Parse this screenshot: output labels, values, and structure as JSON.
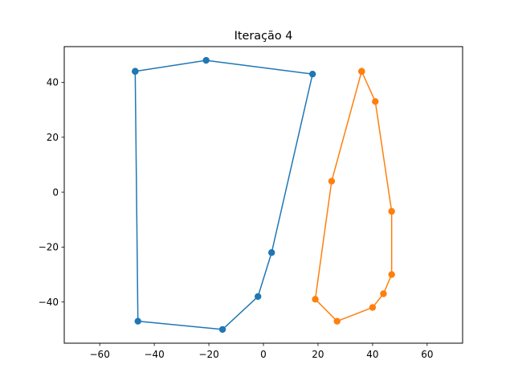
{
  "chart_data": {
    "type": "line",
    "title": "Iteração 4",
    "xlabel": "",
    "ylabel": "",
    "xlim": [
      -73,
      73
    ],
    "ylim": [
      -55,
      53
    ],
    "x_ticks": [
      -60,
      -40,
      -20,
      0,
      20,
      40,
      60
    ],
    "y_ticks": [
      -40,
      -20,
      0,
      20,
      40
    ],
    "x_tick_labels": [
      "−60",
      "−40",
      "−20",
      "0",
      "20",
      "40",
      "60"
    ],
    "y_tick_labels": [
      "−40",
      "−20",
      "0",
      "20",
      "40"
    ],
    "grid": false,
    "legend": "none",
    "series": [
      {
        "color": "#1f77b4",
        "marker": "circle",
        "points": [
          [
            -47,
            44
          ],
          [
            -21,
            48
          ],
          [
            18,
            43
          ],
          [
            3,
            -22
          ],
          [
            -2,
            -38
          ],
          [
            -15,
            -50
          ],
          [
            -46,
            -47
          ],
          [
            -47,
            44
          ]
        ]
      },
      {
        "color": "#ff7f0e",
        "marker": "circle",
        "points": [
          [
            36,
            44
          ],
          [
            41,
            33
          ],
          [
            47,
            -7
          ],
          [
            47,
            -30
          ],
          [
            44,
            -37
          ],
          [
            40,
            -42
          ],
          [
            27,
            -47
          ],
          [
            19,
            -39
          ],
          [
            25,
            4
          ],
          [
            36,
            44
          ]
        ]
      }
    ]
  }
}
